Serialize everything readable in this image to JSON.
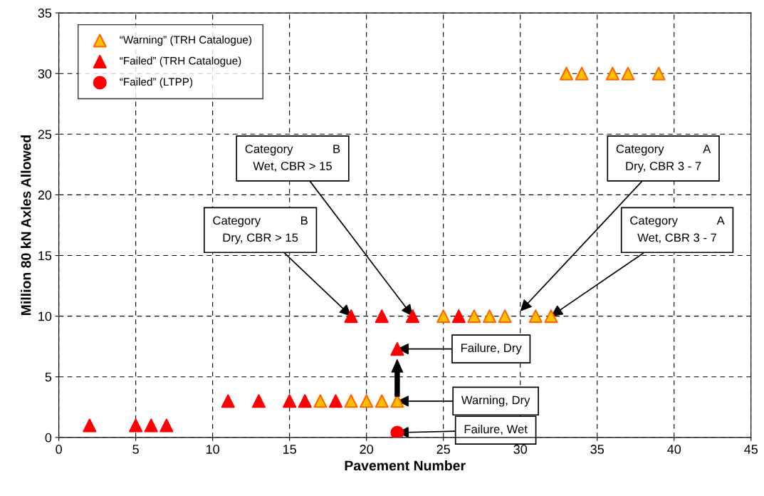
{
  "chart_data": {
    "type": "scatter",
    "xlabel": "Pavement Number",
    "ylabel": "Million 80 kN Axles Allowed",
    "xlim": [
      0,
      45
    ],
    "ylim": [
      0,
      35
    ],
    "xticks": [
      0,
      5,
      10,
      15,
      20,
      25,
      30,
      35,
      40,
      45
    ],
    "yticks": [
      0,
      5,
      10,
      15,
      20,
      25,
      30,
      35
    ],
    "grid": true,
    "legend": "top left",
    "series": [
      {
        "name": "“Warning” (TRH Catalogue)",
        "color": "#ffc000",
        "marker": "triangle",
        "x": [
          17,
          19,
          20,
          21,
          22,
          25,
          27,
          28,
          29,
          31,
          32,
          33,
          34,
          36,
          37,
          39
        ],
        "values": [
          3,
          3,
          3,
          3,
          3,
          10,
          10,
          10,
          10,
          10,
          10,
          30,
          30,
          30,
          30,
          30
        ]
      },
      {
        "name": "“Failed” (TRH Catalogue)",
        "color": "#ff0000",
        "marker": "triangle",
        "x": [
          2,
          5,
          6,
          7,
          11,
          13,
          15,
          16,
          18,
          19,
          21,
          23,
          26,
          22
        ],
        "values": [
          1,
          1,
          1,
          1,
          3,
          3,
          3,
          3,
          3,
          10,
          10,
          10,
          10,
          7.3
        ]
      },
      {
        "name": "“Failed” (LTPP)",
        "color": "#ff0000",
        "marker": "circle",
        "x": [
          22
        ],
        "values": [
          0.4
        ]
      }
    ],
    "annotations": [
      {
        "text": "Category            B\nWet, CBR > 15",
        "x": 23,
        "y": 10
      },
      "Category            A\nDry, CBR 3 - 7",
      {
        "text": "Category            B\nDry, CBR > 15",
        "x": 19,
        "y": 10
      },
      {
        "text": "Category            A\nWet, CBR 3 - 7",
        "x": 32,
        "y": 10
      },
      {
        "text": "Failure, Dry",
        "x": 22,
        "y": 7.3
      },
      {
        "text": "Warning, Dry",
        "x": 22,
        "y": 3
      },
      {
        "text": "Failure, Wet",
        "x": 22,
        "y": 0.4
      }
    ]
  }
}
